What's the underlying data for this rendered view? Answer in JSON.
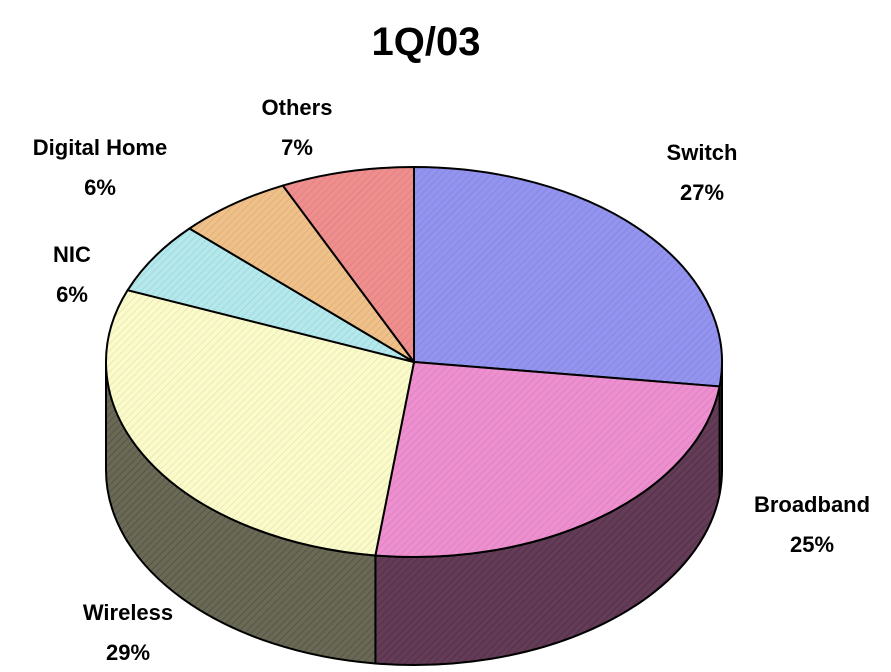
{
  "chart_data": {
    "type": "pie",
    "style": "3d",
    "title": "1Q/03",
    "slices": [
      {
        "label": "Switch",
        "value": 27,
        "value_label": "27%",
        "color": "#9393f0"
      },
      {
        "label": "Broadband",
        "value": 25,
        "value_label": "25%",
        "color": "#ee8fd0"
      },
      {
        "label": "Wireless",
        "value": 29,
        "value_label": "29%",
        "color": "#fbfbca"
      },
      {
        "label": "NIC",
        "value": 6,
        "value_label": "6%",
        "color": "#b3e8ec"
      },
      {
        "label": "Digital Home",
        "value": 6,
        "value_label": "6%",
        "color": "#f0c089"
      },
      {
        "label": "Others",
        "value": 7,
        "value_label": "7%",
        "color": "#f08e8e"
      }
    ]
  }
}
